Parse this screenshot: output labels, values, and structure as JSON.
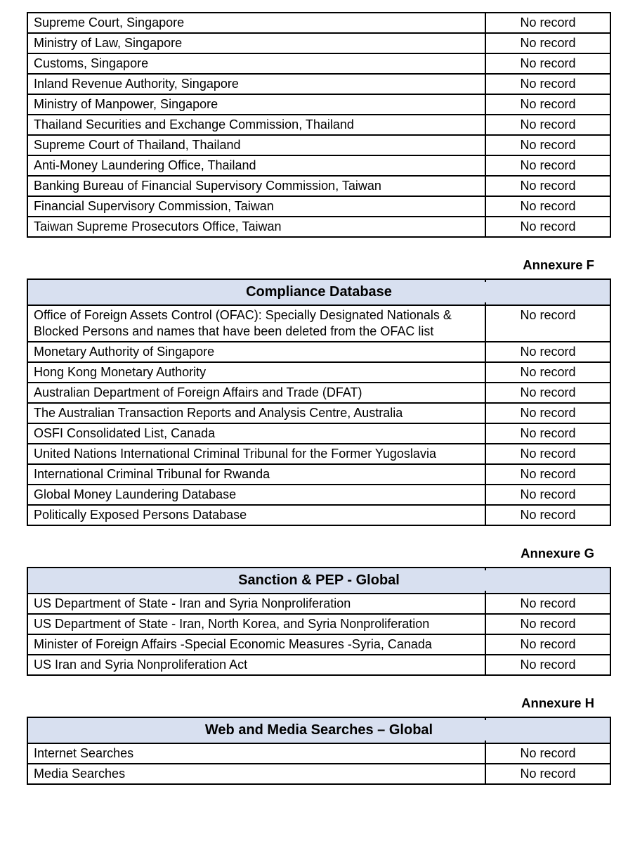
{
  "result_label": "No record",
  "colors": {
    "header_bg": "#d8e0f0",
    "border": "#000000",
    "text": "#000000",
    "page_bg": "#ffffff"
  },
  "tables": [
    {
      "title": "",
      "annexure": "",
      "rows": [
        {
          "source": "Supreme Court, Singapore",
          "result": "No record"
        },
        {
          "source": "Ministry of Law, Singapore",
          "result": "No record"
        },
        {
          "source": "Customs, Singapore",
          "result": "No record"
        },
        {
          "source": "Inland Revenue Authority, Singapore",
          "result": "No record"
        },
        {
          "source": "Ministry of Manpower, Singapore",
          "result": "No record"
        },
        {
          "source": "Thailand Securities and Exchange Commission, Thailand",
          "result": "No record"
        },
        {
          "source": "Supreme Court of Thailand, Thailand",
          "result": "No record"
        },
        {
          "source": "Anti-Money Laundering Office, Thailand",
          "result": "No record"
        },
        {
          "source": "Banking Bureau of Financial Supervisory Commission, Taiwan",
          "result": "No record"
        },
        {
          "source": "Financial Supervisory Commission, Taiwan",
          "result": "No record"
        },
        {
          "source": "Taiwan Supreme Prosecutors Office, Taiwan",
          "result": "No record"
        }
      ]
    },
    {
      "title": "Compliance Database",
      "annexure": "Annexure F",
      "rows": [
        {
          "source": "Office of Foreign Assets Control (OFAC): Specially Designated Nationals & Blocked Persons and names that have been deleted from the OFAC list",
          "result": "No record"
        },
        {
          "source": "Monetary Authority of Singapore",
          "result": "No record"
        },
        {
          "source": "Hong Kong Monetary Authority",
          "result": "No record"
        },
        {
          "source": "Australian Department of Foreign Affairs and Trade (DFAT)",
          "result": "No record"
        },
        {
          "source": "The Australian Transaction Reports and Analysis Centre, Australia",
          "result": "No record"
        },
        {
          "source": "OSFI Consolidated List, Canada",
          "result": "No record"
        },
        {
          "source": "United Nations International Criminal Tribunal for the Former Yugoslavia",
          "result": "No record"
        },
        {
          "source": "International Criminal Tribunal for Rwanda",
          "result": "No record"
        },
        {
          "source": "Global Money Laundering Database",
          "result": "No record"
        },
        {
          "source": "Politically Exposed Persons Database",
          "result": "No record"
        }
      ]
    },
    {
      "title": "Sanction & PEP - Global",
      "annexure": "Annexure G",
      "rows": [
        {
          "source": "US Department of State - Iran and Syria Nonproliferation",
          "result": "No record"
        },
        {
          "source": "US Department of State - Iran, North Korea, and Syria Nonproliferation",
          "result": "No record"
        },
        {
          "source": "Minister of Foreign Affairs -Special Economic Measures -Syria, Canada",
          "result": "No record"
        },
        {
          "source": "US Iran and Syria Nonproliferation Act",
          "result": "No record"
        }
      ]
    },
    {
      "title": "Web and Media Searches – Global",
      "annexure": "Annexure H",
      "rows": [
        {
          "source": "Internet Searches",
          "result": "No record"
        },
        {
          "source": "Media Searches",
          "result": "No record"
        }
      ]
    }
  ]
}
